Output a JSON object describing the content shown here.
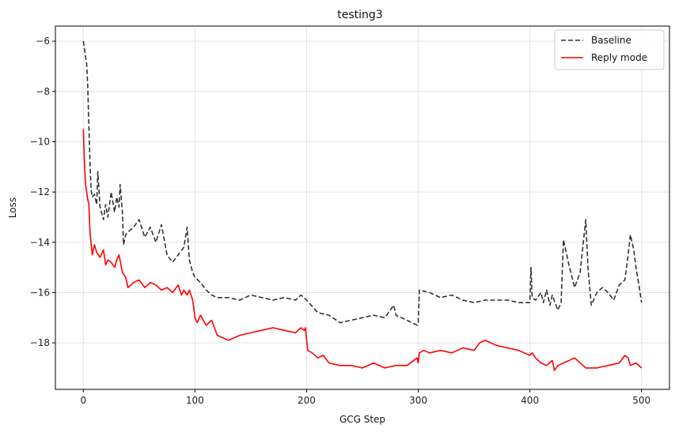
{
  "chart_data": {
    "type": "line",
    "title": "testing3",
    "xlabel": "GCG Step",
    "ylabel": "Loss",
    "xlim": [
      -25,
      525
    ],
    "ylim": [
      -19.85,
      -5.4
    ],
    "xticks": [
      0,
      100,
      200,
      300,
      400,
      500
    ],
    "yticks": [
      -6,
      -8,
      -10,
      -12,
      -14,
      -16,
      -18
    ],
    "grid": true,
    "legend_position": "top-right",
    "series": [
      {
        "name": "Baseline",
        "color": "#333333",
        "style": "dashed",
        "x": [
          0,
          1,
          2,
          3,
          4,
          5,
          6,
          7,
          8,
          10,
          12,
          13,
          15,
          18,
          20,
          22,
          25,
          28,
          30,
          32,
          33,
          35,
          36,
          38,
          40,
          45,
          50,
          55,
          60,
          65,
          70,
          75,
          80,
          85,
          90,
          93,
          95,
          98,
          100,
          105,
          110,
          115,
          120,
          130,
          140,
          150,
          160,
          170,
          180,
          190,
          195,
          200,
          210,
          220,
          230,
          240,
          250,
          260,
          270,
          275,
          278,
          280,
          290,
          299,
          300,
          301,
          310,
          320,
          330,
          340,
          350,
          360,
          370,
          380,
          390,
          400,
          401,
          402,
          405,
          410,
          412,
          415,
          418,
          420,
          425,
          428,
          430,
          435,
          440,
          445,
          450,
          452,
          455,
          458,
          460,
          465,
          470,
          475,
          480,
          485,
          488,
          490,
          493,
          495,
          498,
          500
        ],
        "values": [
          -6.0,
          -6.3,
          -6.6,
          -6.9,
          -7.8,
          -9.4,
          -10.8,
          -11.9,
          -12.2,
          -12.1,
          -12.5,
          -11.2,
          -12.6,
          -13.1,
          -12.5,
          -13.0,
          -12.0,
          -12.8,
          -12.2,
          -12.6,
          -11.7,
          -12.8,
          -14.1,
          -13.7,
          -13.6,
          -13.4,
          -13.1,
          -13.8,
          -13.4,
          -14.0,
          -13.3,
          -14.5,
          -14.8,
          -14.5,
          -14.2,
          -13.4,
          -14.7,
          -15.2,
          -15.4,
          -15.6,
          -15.9,
          -16.1,
          -16.2,
          -16.2,
          -16.3,
          -16.1,
          -16.2,
          -16.3,
          -16.2,
          -16.3,
          -16.1,
          -16.3,
          -16.8,
          -16.9,
          -17.2,
          -17.1,
          -17.0,
          -16.9,
          -17.0,
          -16.7,
          -16.5,
          -16.9,
          -17.1,
          -17.3,
          -17.2,
          -15.9,
          -16.0,
          -16.2,
          -16.1,
          -16.3,
          -16.4,
          -16.3,
          -16.3,
          -16.3,
          -16.4,
          -16.4,
          -15.0,
          -16.2,
          -16.3,
          -16.0,
          -16.4,
          -15.9,
          -16.5,
          -16.1,
          -16.7,
          -16.4,
          -13.9,
          -14.9,
          -15.8,
          -15.2,
          -13.1,
          -15.0,
          -16.5,
          -16.2,
          -16.0,
          -15.8,
          -16.0,
          -16.3,
          -15.7,
          -15.5,
          -14.5,
          -13.7,
          -14.3,
          -15.0,
          -15.8,
          -16.4
        ]
      },
      {
        "name": "Reply mode",
        "color": "#ff0000",
        "style": "solid",
        "x": [
          0,
          1,
          2,
          3,
          4,
          5,
          6,
          8,
          10,
          12,
          15,
          18,
          20,
          22,
          25,
          28,
          30,
          32,
          35,
          38,
          40,
          45,
          50,
          55,
          60,
          65,
          70,
          75,
          80,
          85,
          88,
          90,
          93,
          95,
          98,
          100,
          102,
          105,
          110,
          115,
          120,
          125,
          130,
          140,
          150,
          160,
          170,
          180,
          190,
          195,
          198,
          199,
          200,
          201,
          205,
          210,
          215,
          220,
          230,
          240,
          250,
          260,
          270,
          280,
          290,
          299,
          300,
          301,
          305,
          310,
          320,
          330,
          340,
          350,
          355,
          360,
          370,
          380,
          390,
          400,
          402,
          405,
          410,
          415,
          420,
          422,
          425,
          430,
          440,
          450,
          460,
          470,
          480,
          485,
          488,
          490,
          495,
          500
        ],
        "values": [
          -9.5,
          -10.8,
          -11.7,
          -12.0,
          -12.3,
          -12.5,
          -13.6,
          -14.5,
          -14.1,
          -14.4,
          -14.6,
          -14.3,
          -14.9,
          -14.7,
          -14.8,
          -15.0,
          -14.7,
          -14.5,
          -15.2,
          -15.4,
          -15.8,
          -15.6,
          -15.5,
          -15.8,
          -15.6,
          -15.7,
          -15.9,
          -15.8,
          -16.0,
          -15.7,
          -16.1,
          -15.9,
          -16.1,
          -15.9,
          -16.3,
          -17.0,
          -17.2,
          -16.9,
          -17.3,
          -17.1,
          -17.7,
          -17.8,
          -17.9,
          -17.7,
          -17.6,
          -17.5,
          -17.4,
          -17.5,
          -17.6,
          -17.4,
          -17.5,
          -17.4,
          -17.9,
          -18.3,
          -18.4,
          -18.6,
          -18.5,
          -18.8,
          -18.9,
          -18.9,
          -19.0,
          -18.8,
          -19.0,
          -18.9,
          -18.9,
          -18.6,
          -18.8,
          -18.4,
          -18.3,
          -18.4,
          -18.3,
          -18.4,
          -18.2,
          -18.3,
          -18.0,
          -17.9,
          -18.1,
          -18.2,
          -18.3,
          -18.5,
          -18.4,
          -18.6,
          -18.8,
          -18.9,
          -18.7,
          -19.1,
          -18.9,
          -18.8,
          -18.6,
          -19.0,
          -19.0,
          -18.9,
          -18.8,
          -18.5,
          -18.6,
          -18.9,
          -18.8,
          -19.0
        ]
      }
    ]
  }
}
